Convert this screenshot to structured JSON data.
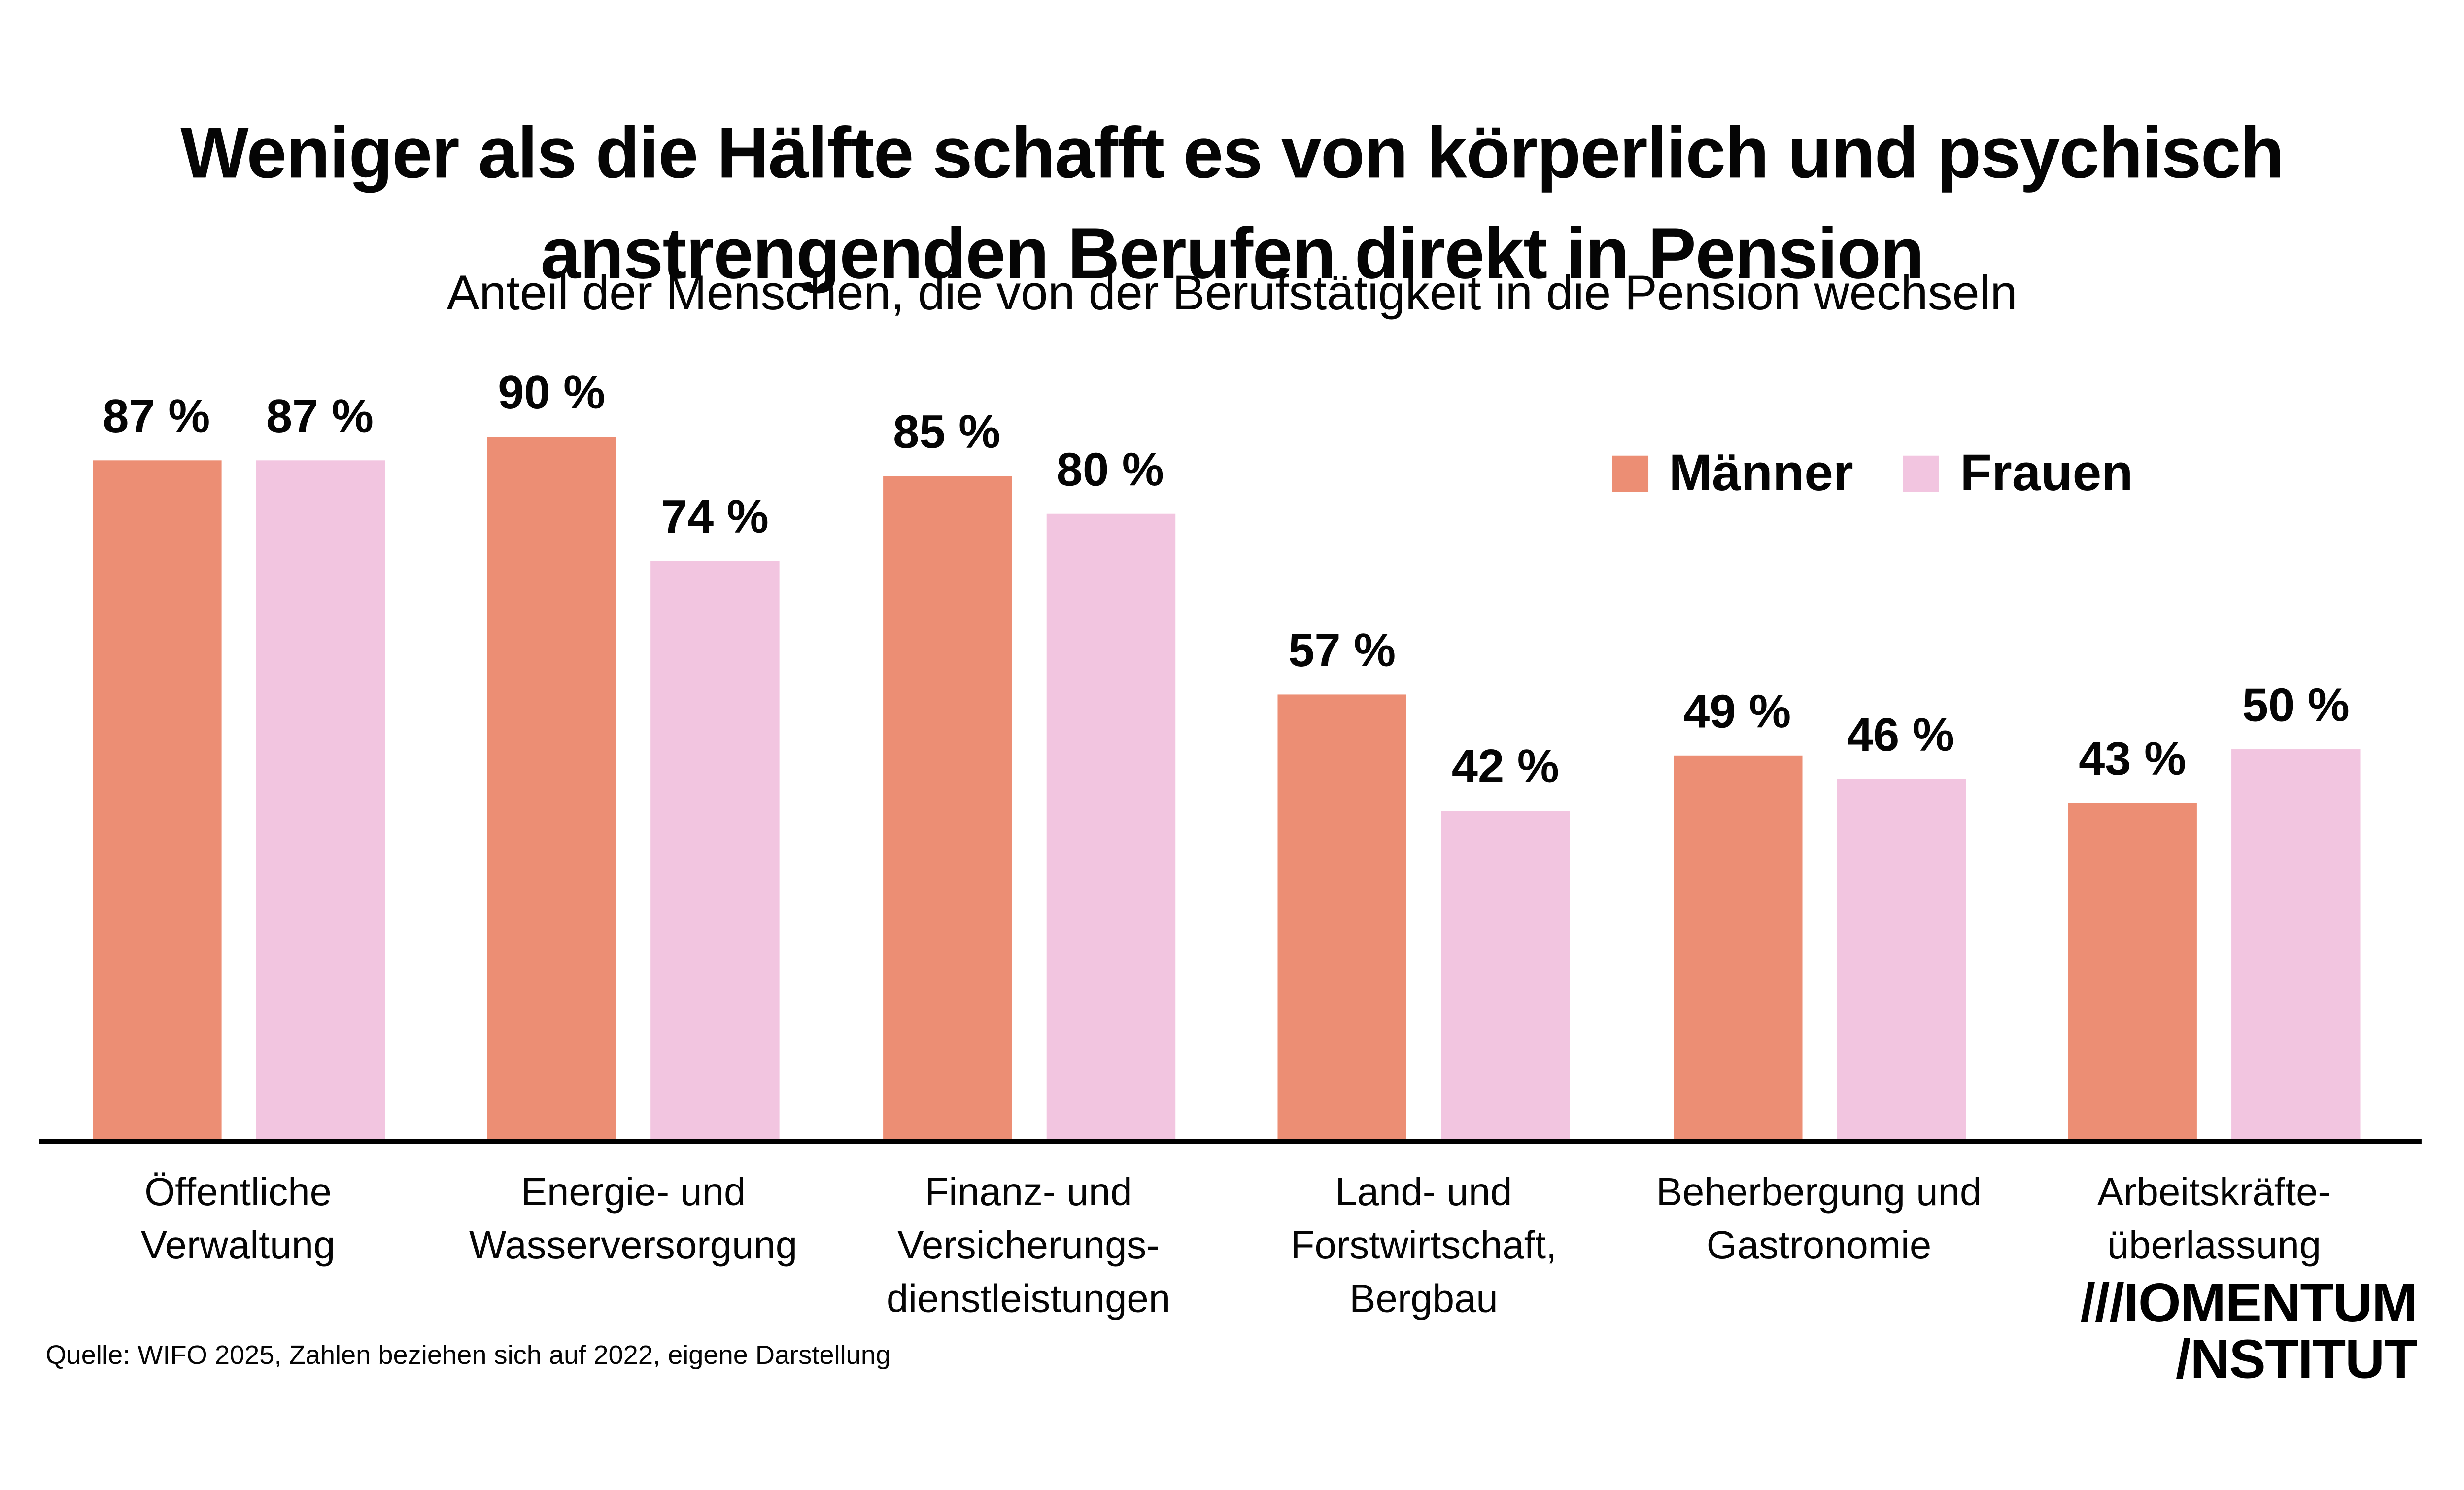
{
  "header": {
    "title_line1": "Weniger als die Hälfte schafft es von körperlich und psychisch",
    "title_line2": "anstrengenden Berufen direkt in Pension",
    "subtitle": "Anteil der Menschen, die von der Berufstätigkeit in die Pension wechseln"
  },
  "legend": {
    "items": [
      {
        "label": "Männer",
        "color": "#EC8E74"
      },
      {
        "label": "Frauen",
        "color": "#F2C5E0"
      }
    ]
  },
  "chart_data": {
    "type": "bar",
    "title": "Weniger als die Hälfte schafft es von körperlich und psychisch anstrengenden Berufen direkt in Pension",
    "subtitle": "Anteil der Menschen, die von der Berufstätigkeit in die Pension wechseln",
    "unit": "%",
    "ylim": [
      0,
      100
    ],
    "grid": false,
    "axes_visible": false,
    "legend_position": "top-right",
    "categories": [
      "Öffentliche Verwaltung",
      "Energie- und Wasserversorgung",
      "Finanz- und Versicherungsdienstleistungen",
      "Land- und Forstwirtschaft, Bergbau",
      "Beherbergung und Gastronomie",
      "Arbeitskräfteüberlassung"
    ],
    "category_lines": [
      [
        "Öffentliche",
        "Verwaltung"
      ],
      [
        "Energie- und",
        "Wasserversorgung"
      ],
      [
        "Finanz- und",
        "Versicherungs-",
        "dienstleistungen"
      ],
      [
        "Land- und",
        "Forstwirtschaft,",
        "Bergbau"
      ],
      [
        "Beherbergung und",
        "Gastronomie"
      ],
      [
        "Arbeitskräfte-",
        "überlassung"
      ]
    ],
    "series": [
      {
        "name": "Männer",
        "color": "#EC8E74",
        "values": [
          87,
          90,
          85,
          57,
          49,
          43
        ],
        "labels": [
          "87 %",
          "90 %",
          "85 %",
          "57 %",
          "49 %",
          "43 %"
        ]
      },
      {
        "name": "Frauen",
        "color": "#F2C5E0",
        "values": [
          87,
          74,
          80,
          42,
          46,
          50
        ],
        "labels": [
          "87 %",
          "74 %",
          "80 %",
          "42 %",
          "46 %",
          "50 %"
        ]
      }
    ]
  },
  "footer": {
    "source": "Quelle: WIFO 2025, Zahlen beziehen sich auf 2022, eigene Darstellung",
    "logo_line1": "///IOMENTUM",
    "logo_line2": "/NSTITUT",
    "logo_alt": "MOMENTUM INSTITUT"
  }
}
